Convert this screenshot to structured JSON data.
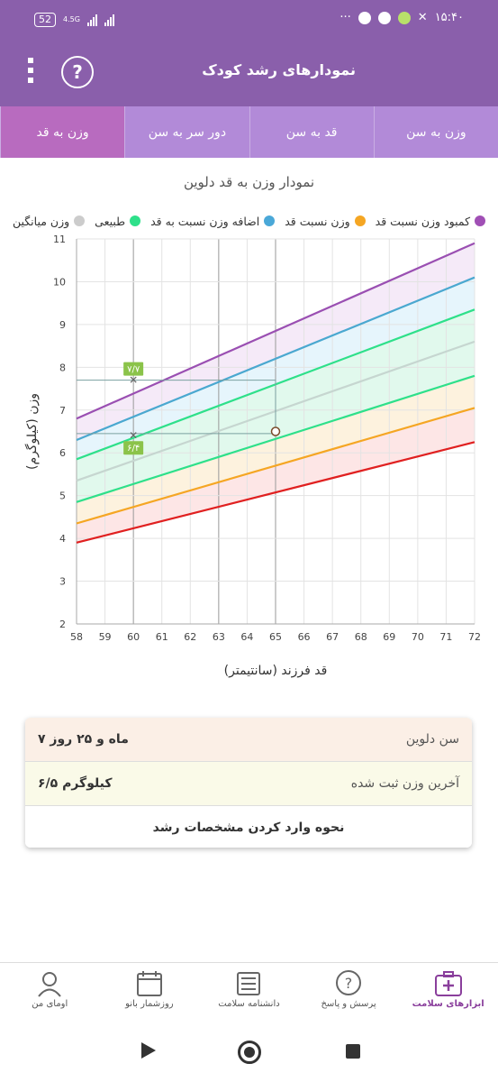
{
  "status": {
    "battery": "52",
    "network": "4.5G",
    "time": "۱۵:۴۰",
    "more": "···"
  },
  "header": {
    "title": "نمودارهای رشد کودک",
    "help": "?"
  },
  "tabs": [
    "وزن به سن",
    "قد به سن",
    "دور سر به سن",
    "وزن به قد"
  ],
  "chart_data": {
    "type": "line",
    "title": "نمودار وزن به قد دلوین",
    "xlabel": "قد فرزند (سانتیمتر)",
    "ylabel": "وزن (کیلوگرم)",
    "xlim": [
      58,
      72
    ],
    "ylim": [
      2,
      11
    ],
    "x_ticks": [
      58,
      59,
      60,
      61,
      62,
      63,
      64,
      65,
      66,
      67,
      68,
      69,
      70,
      71,
      72
    ],
    "y_ticks": [
      2,
      3,
      4,
      5,
      6,
      7,
      8,
      9,
      10,
      11
    ],
    "grid": true,
    "legend_position": "top",
    "legend": [
      {
        "label": "کمبود وزن نسبت قد",
        "color": "#a04fb5"
      },
      {
        "label": "وزن نسبت قد",
        "color": "#f5a623"
      },
      {
        "label": "اضافه وزن نسبت به قد",
        "color": "#4aa8d8"
      },
      {
        "label": "طبیعی",
        "color": "#2ee08a"
      },
      {
        "label": "وزن میانگین",
        "color": "#cccccc"
      }
    ],
    "x": [
      58,
      72
    ],
    "series": [
      {
        "color": "#9a4fb2",
        "values": [
          6.8,
          10.9
        ],
        "fill": "#f3e6f7"
      },
      {
        "color": "#4aa8d0",
        "values": [
          6.3,
          10.1
        ],
        "fill": "#e2f3fb"
      },
      {
        "color": "#2ee08a",
        "values": [
          5.85,
          9.35
        ],
        "fill": "#dcf8ea"
      },
      {
        "color": "#c6d6d0",
        "values": [
          5.35,
          8.6
        ],
        "fill": "#dcf8ea"
      },
      {
        "color": "#2ee08a",
        "values": [
          4.85,
          7.8
        ],
        "fill": "#fdf0d8"
      },
      {
        "color": "#f5a623",
        "values": [
          4.35,
          7.05
        ],
        "fill": "#fde2e2"
      },
      {
        "color": "#e02020",
        "values": [
          3.9,
          6.25
        ],
        "fill": null
      }
    ],
    "markers": [
      {
        "x": 60,
        "y": 7.7,
        "label": "۷/۷"
      },
      {
        "x": 60,
        "y": 6.4,
        "label": "۶/۴"
      }
    ],
    "guides": [
      {
        "x": 65,
        "y": 7.7
      },
      {
        "x": 65,
        "y": 6.45
      }
    ],
    "highlight_point": {
      "x": 65,
      "y": 6.5
    }
  },
  "info": {
    "age_label": "سن دلوین",
    "age_value": "۷ ماه و ۲۵ روز",
    "weight_label": "آخرین وزن ثبت شده",
    "weight_value": "۶/۵ کیلوگرم",
    "howto": "نحوه وارد کردن مشخصات رشد"
  },
  "bottom_nav": [
    "ابزارهای سلامت",
    "پرسش و پاسخ",
    "دانشنامه سلامت",
    "روزشمار بانو",
    "اومای من"
  ]
}
